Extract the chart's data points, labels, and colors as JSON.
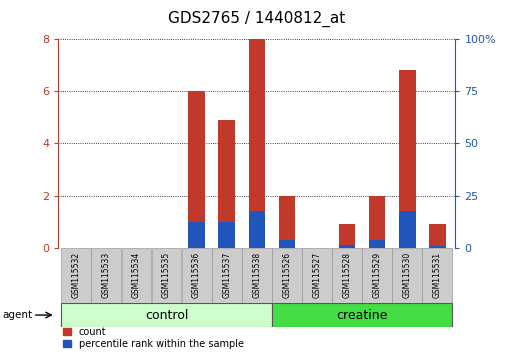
{
  "title": "GDS2765 / 1440812_at",
  "samples": [
    "GSM115532",
    "GSM115533",
    "GSM115534",
    "GSM115535",
    "GSM115536",
    "GSM115537",
    "GSM115538",
    "GSM115526",
    "GSM115527",
    "GSM115528",
    "GSM115529",
    "GSM115530",
    "GSM115531"
  ],
  "count_values": [
    0.0,
    0.0,
    0.0,
    0.0,
    6.0,
    4.9,
    8.0,
    2.0,
    0.0,
    0.9,
    2.0,
    6.8,
    0.9
  ],
  "percentile_values": [
    0.0,
    0.0,
    0.0,
    0.0,
    1.0,
    1.0,
    1.4,
    0.3,
    0.0,
    0.1,
    0.3,
    1.4,
    0.05
  ],
  "count_color": "#c0392b",
  "percentile_color": "#2255bb",
  "ylim_left": [
    0,
    8
  ],
  "ylim_right": [
    0,
    100
  ],
  "yticks_left": [
    0,
    2,
    4,
    6,
    8
  ],
  "yticks_right": [
    0,
    25,
    50,
    75,
    100
  ],
  "control_n": 7,
  "creatine_n": 6,
  "control_label": "control",
  "creatine_label": "creatine",
  "agent_label": "agent",
  "legend_count": "count",
  "legend_percentile": "percentile rank within the sample",
  "bar_width": 0.55,
  "control_bg": "#ccffcc",
  "creatine_bg": "#44dd44",
  "title_fontsize": 11,
  "axis_fontsize": 8,
  "group_label_fontsize": 9,
  "sample_fontsize": 5.5
}
